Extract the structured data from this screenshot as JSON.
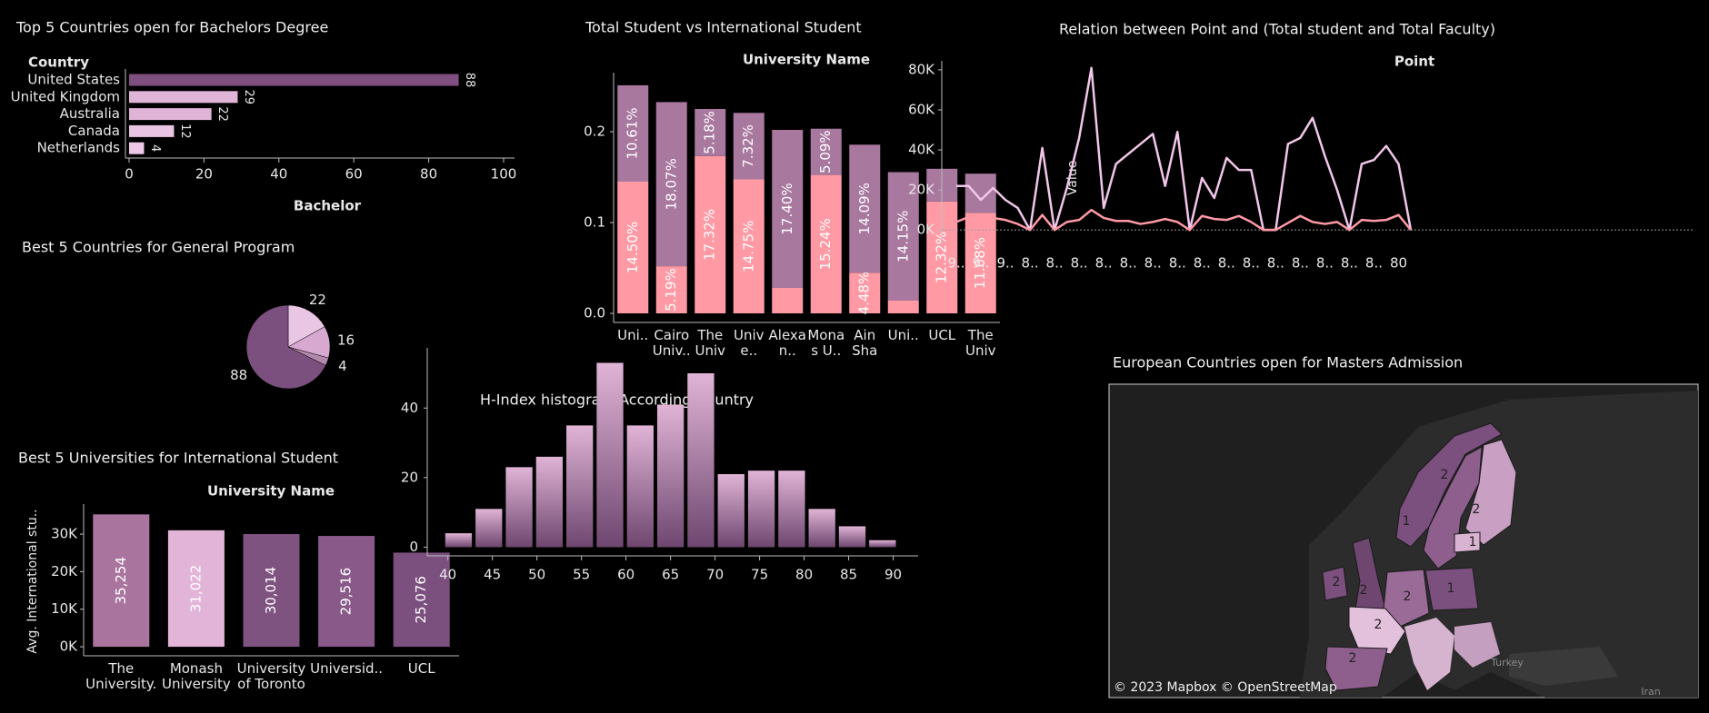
{
  "chart_data": [
    {
      "type": "hbar",
      "title": "Top 5 Countries open for Bachelors Degree",
      "y_header": "Country",
      "xlabel": "Bachelor",
      "categories": [
        "United States",
        "United Kingdom",
        "Australia",
        "Canada",
        "Netherlands"
      ],
      "values": [
        88,
        29,
        22,
        12,
        4
      ],
      "colors": [
        "#7e4f7f",
        "#e0b4d6",
        "#e0b4d6",
        "#e9c4e3",
        "#edc9e7"
      ],
      "xlim": [
        0,
        100
      ],
      "xticks": [
        0,
        20,
        40,
        60,
        80,
        100
      ]
    },
    {
      "type": "pie",
      "title": "Best 5 Countries for General Program",
      "values": [
        22,
        16,
        4,
        88
      ],
      "colors": [
        "#e8c6e4",
        "#d8a9d0",
        "#b289ac",
        "#7b4f7e"
      ]
    },
    {
      "type": "bar",
      "title": "Best 5 Universities for International Student",
      "header": "University Name",
      "ylabel": "Avg. International stu..",
      "categories": [
        "The University..",
        "Monash University",
        "University of Toronto",
        "Universid..",
        "UCL"
      ],
      "values": [
        35254,
        31022,
        30014,
        29516,
        25076
      ],
      "value_labels": [
        "35,254",
        "31,022",
        "30,014",
        "29,516",
        "25,076"
      ],
      "colors": [
        "#a9759f",
        "#e2b5d8",
        "#7f5380",
        "#895a89",
        "#7b4f7e"
      ],
      "ylim": [
        -2400,
        38000
      ],
      "yticks": [
        {
          "value": 0,
          "label": "0K"
        },
        {
          "value": 10000,
          "label": "10K"
        },
        {
          "value": 20000,
          "label": "20K"
        },
        {
          "value": 30000,
          "label": "30K"
        }
      ]
    },
    {
      "type": "stacked_bar",
      "title": "Total Student vs International Student",
      "header": "University Name",
      "categories": [
        "Uni..",
        "Cairo Univ..",
        "The Unive..",
        "Unive..",
        "Alexan..",
        "Monas U..",
        "Ain Sham..",
        "Uni..",
        "UCL",
        "The Unive.."
      ],
      "series": [
        {
          "color": "#ff9aa5",
          "values": [
            0.145,
            0.0519,
            0.1732,
            0.1475,
            0.028,
            0.1524,
            0.0448,
            0.014,
            0.1232,
            0.1108
          ],
          "value_labels": [
            "14.50%",
            "5.19%",
            "17.32%",
            "14.75%",
            null,
            "15.24%",
            "4.48%",
            null,
            "12.32%",
            "11.08%"
          ]
        },
        {
          "color": "#a8789f",
          "values": [
            0.1061,
            0.1807,
            0.0518,
            0.0732,
            0.174,
            0.0509,
            0.1409,
            0.1415,
            0.036,
            0.043
          ],
          "value_labels": [
            "10.61%",
            "18.07%",
            "5.18%",
            "7.32%",
            "17.40%",
            "5.09%",
            "14.09%",
            "14.15%",
            null,
            null
          ]
        }
      ],
      "ylim": [
        -0.01,
        0.265
      ],
      "yticks": [
        {
          "value": 0,
          "label": "0.0"
        },
        0.1,
        0.2
      ]
    },
    {
      "type": "histogram",
      "title": "H-Index histogram According Country",
      "bins": [
        39.5,
        42.9,
        46.3,
        49.7,
        53.1,
        56.5,
        59.9,
        63.3,
        66.7,
        70.1,
        73.5,
        76.9,
        80.3,
        83.7,
        87.1,
        90.5
      ],
      "values": [
        4,
        11,
        23,
        26,
        35,
        53,
        35,
        41,
        50,
        21,
        22,
        22,
        11,
        6,
        2
      ],
      "colors": [
        "#6e466f",
        "#e0b4d6"
      ],
      "xlim": [
        38.4,
        92.8
      ],
      "xticks": [
        40,
        45,
        50,
        55,
        60,
        65,
        70,
        75,
        80,
        85,
        90
      ],
      "ylim": [
        -2.5,
        56
      ],
      "yticks": [
        0,
        20,
        40
      ]
    },
    {
      "type": "line",
      "title": "Relation between Point and (Total student and Total Faculty)",
      "header": "Point",
      "ylabel": "Value",
      "categories": [
        "9..",
        null,
        "9..",
        null,
        "9..",
        null,
        "8..",
        null,
        "8..",
        null,
        "8..",
        null,
        "8..",
        null,
        "8..",
        null,
        "8..",
        null,
        "8..",
        null,
        "8..",
        null,
        "8..",
        null,
        "8..",
        null,
        "8..",
        null,
        "8..",
        null,
        "8..",
        null,
        "8..",
        null,
        "8..",
        null,
        "80",
        null
      ],
      "series": [
        {
          "color": "#f2c6ea",
          "values": [
            22000,
            22000,
            15000,
            21000,
            15000,
            11000,
            0,
            41000,
            0,
            21000,
            46000,
            81000,
            11000,
            33000,
            38000,
            43000,
            48000,
            22000,
            49000,
            0,
            26000,
            16000,
            36000,
            30000,
            30000,
            0,
            0,
            43000,
            46000,
            56000,
            37000,
            20000,
            0,
            33000,
            35000,
            42000,
            33000,
            0
          ]
        },
        {
          "color": "#ff9aa5",
          "values": [
            4000,
            6500,
            5000,
            6000,
            5000,
            3000,
            0,
            7500,
            0,
            4000,
            5000,
            10000,
            6000,
            4500,
            4500,
            3000,
            4000,
            5500,
            4000,
            0,
            7000,
            5500,
            5000,
            7000,
            4000,
            0,
            0,
            3500,
            7000,
            4000,
            3000,
            4000,
            0,
            5000,
            4500,
            5000,
            7500,
            0
          ]
        }
      ],
      "ylim": [
        -4000,
        84500
      ],
      "yticks": [
        {
          "value": 0,
          "label": "0K"
        },
        {
          "value": 20000,
          "label": "20K"
        },
        {
          "value": 40000,
          "label": "40K"
        },
        {
          "value": 60000,
          "label": "60K"
        },
        {
          "value": 80000,
          "label": "80K"
        }
      ]
    },
    {
      "type": "map",
      "title": "European Countries open for Masters Admission",
      "values": [
        2,
        2,
        1,
        1,
        2,
        2,
        2,
        1,
        2,
        2
      ],
      "colors": [
        "#7b4f7e",
        "#c9a0c4",
        "#8e5f8c",
        "#d9b3d2",
        "#7b4f7e",
        "#6e466f",
        "#9a6b97",
        "#7b4f7e",
        "#e3c0dc",
        "#8e5f8c"
      ],
      "places": [
        "Turkey",
        "Iran"
      ],
      "attribution": "© 2023 Mapbox © OpenStreetMap"
    }
  ]
}
